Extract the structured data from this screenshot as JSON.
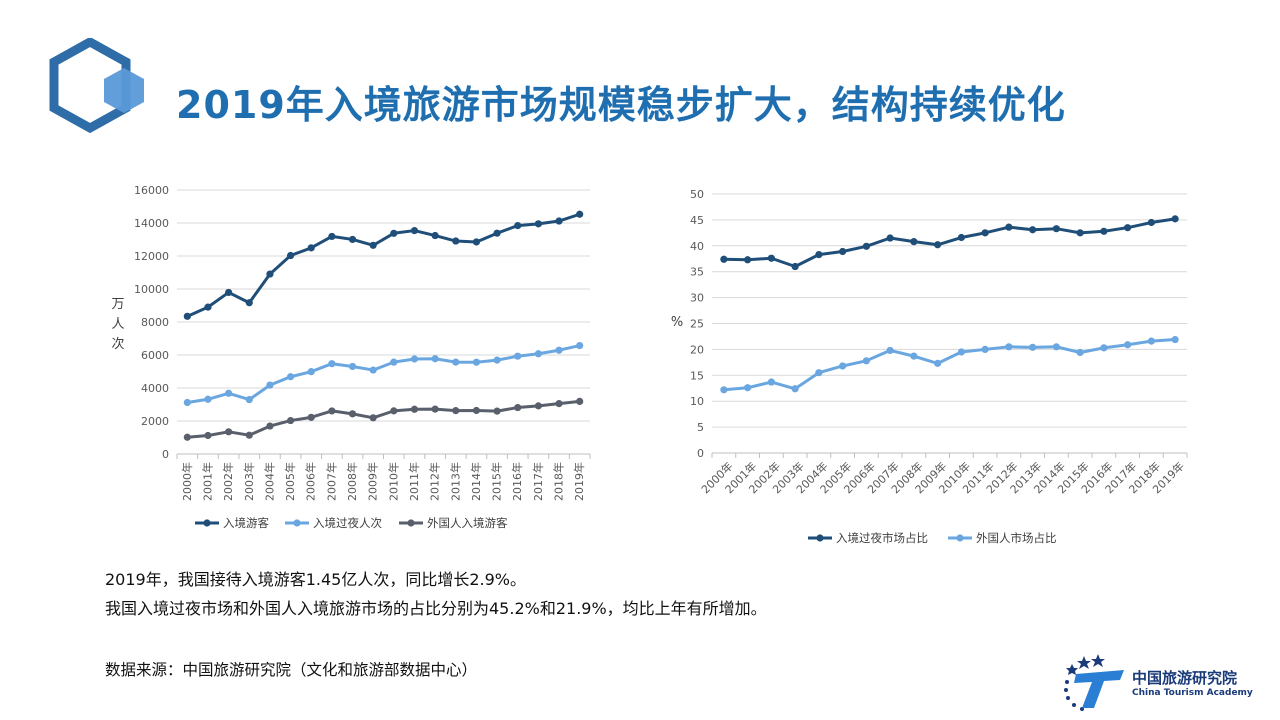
{
  "title": "2019年入境旅游市场规模稳步扩大，结构持续优化",
  "colors": {
    "title": "#1f6fb0",
    "dark_blue": "#1f4e79",
    "light_blue": "#6aa6e0",
    "gray": "#595f6b"
  },
  "description": [
    "2019年，我国接待入境游客1.45亿人次，同比增长2.9%。",
    "我国入境过夜市场和外国人入境旅游市场的占比分别为45.2%和21.9%，均比上年有所增加。"
  ],
  "source": "数据来源：中国旅游研究院（文化和旅游部数据中心）",
  "org": {
    "name_cn": "中国旅游研究院",
    "name_en": "China Tourism Academy"
  },
  "chart_data": [
    {
      "type": "line",
      "title": "",
      "xlabel": "",
      "ylabel": "万人次",
      "ylim": [
        0,
        16000
      ],
      "yticks": [
        0,
        2000,
        4000,
        6000,
        8000,
        10000,
        12000,
        14000,
        16000
      ],
      "grid": true,
      "legend": "bottom",
      "categories": [
        "2000年",
        "2001年",
        "2002年",
        "2003年",
        "2004年",
        "2005年",
        "2006年",
        "2007年",
        "2008年",
        "2009年",
        "2010年",
        "2011年",
        "2012年",
        "2013年",
        "2014年",
        "2015年",
        "2016年",
        "2017年",
        "2018年",
        "2019年"
      ],
      "series": [
        {
          "name": "入境游客",
          "color": "#1f4e79",
          "values": [
            8344,
            8901,
            9791,
            9166,
            10904,
            12029,
            12494,
            13187,
            13003,
            12648,
            13376,
            13542,
            13241,
            12908,
            12850,
            13382,
            13844,
            13948,
            14120,
            14531
          ]
        },
        {
          "name": "入境过夜人次",
          "color": "#6aa6e0",
          "values": [
            3122,
            3317,
            3680,
            3297,
            4176,
            4681,
            4991,
            5472,
            5305,
            5088,
            5566,
            5758,
            5772,
            5569,
            5562,
            5689,
            5927,
            6074,
            6290,
            6573
          ]
        },
        {
          "name": "外国人入境游客",
          "color": "#595f6b",
          "values": [
            1016,
            1122,
            1344,
            1140,
            1693,
            2026,
            2221,
            2611,
            2433,
            2194,
            2613,
            2711,
            2719,
            2629,
            2636,
            2599,
            2815,
            2917,
            3054,
            3188
          ]
        }
      ]
    },
    {
      "type": "line",
      "title": "",
      "xlabel": "",
      "ylabel": "%",
      "ylim": [
        0,
        50
      ],
      "yticks": [
        0,
        5,
        10,
        15,
        20,
        25,
        30,
        35,
        40,
        45,
        50
      ],
      "grid": true,
      "legend": "bottom",
      "categories": [
        "2000年",
        "2001年",
        "2002年",
        "2003年",
        "2004年",
        "2005年",
        "2006年",
        "2007年",
        "2008年",
        "2009年",
        "2010年",
        "2011年",
        "2012年",
        "2013年",
        "2014年",
        "2015年",
        "2016年",
        "2017年",
        "2018年",
        "2019年"
      ],
      "series": [
        {
          "name": "入境过夜市场占比",
          "color": "#1f4e79",
          "values": [
            37.4,
            37.3,
            37.6,
            36.0,
            38.3,
            38.9,
            39.9,
            41.5,
            40.8,
            40.2,
            41.6,
            42.5,
            43.6,
            43.1,
            43.3,
            42.5,
            42.8,
            43.5,
            44.5,
            45.2
          ]
        },
        {
          "name": "外国人市场占比",
          "color": "#6aa6e0",
          "values": [
            12.2,
            12.6,
            13.7,
            12.4,
            15.5,
            16.8,
            17.8,
            19.8,
            18.7,
            17.3,
            19.5,
            20.0,
            20.5,
            20.4,
            20.5,
            19.4,
            20.3,
            20.9,
            21.6,
            21.9
          ]
        }
      ]
    }
  ]
}
